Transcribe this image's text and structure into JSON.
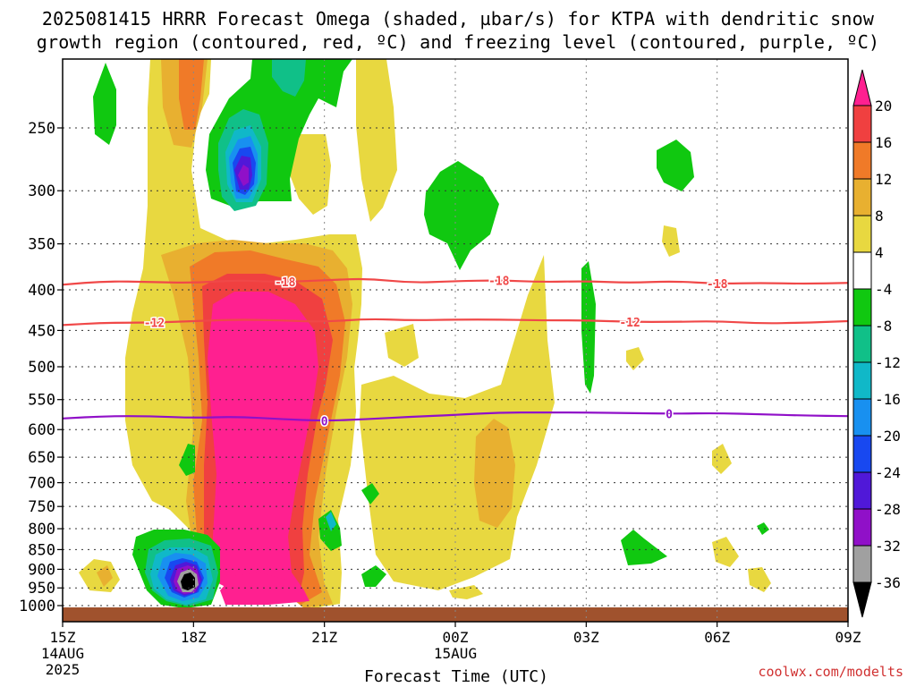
{
  "header": {
    "title_line1": "2025081415 HRRR Forecast Omega (shaded, µbar/s) for KTPA with dendritic snow",
    "title_line2": "growth region (contoured, red, ºC) and freezing level (contoured, purple, ºC)"
  },
  "footer": {
    "credit": "coolwx.com/modelts"
  },
  "chart_data": {
    "type": "contour",
    "xlabel": "Forecast Time (UTC)",
    "ylabel": "",
    "x_range_hours": [
      15,
      33
    ],
    "y_range_hpa": [
      1010,
      200
    ],
    "y_scale": "log-pressure",
    "grid": true,
    "x_ticks": [
      {
        "hour": 15,
        "label": "15Z",
        "sub1": "14AUG",
        "sub2": "2025"
      },
      {
        "hour": 18,
        "label": "18Z",
        "sub1": "",
        "sub2": ""
      },
      {
        "hour": 21,
        "label": "21Z",
        "sub1": "",
        "sub2": ""
      },
      {
        "hour": 24,
        "label": "00Z",
        "sub1": "15AUG",
        "sub2": ""
      },
      {
        "hour": 27,
        "label": "03Z",
        "sub1": "",
        "sub2": ""
      },
      {
        "hour": 30,
        "label": "06Z",
        "sub1": "",
        "sub2": ""
      },
      {
        "hour": 33,
        "label": "09Z",
        "sub1": "",
        "sub2": ""
      }
    ],
    "y_ticks": [
      250,
      300,
      350,
      400,
      450,
      500,
      550,
      600,
      650,
      700,
      750,
      800,
      850,
      900,
      950,
      1000
    ],
    "colorbar": {
      "labels": [
        "20",
        "16",
        "12",
        "8",
        "4",
        "-4",
        "-8",
        "-12",
        "-16",
        "-20",
        "-24",
        "-28",
        "-32",
        "-36"
      ],
      "colors": [
        "#ff2090",
        "#f04040",
        "#f07a28",
        "#e8b030",
        "#e8d840",
        "#ffffff",
        "#10c810",
        "#10c088",
        "#10b8c8",
        "#1890f0",
        "#1848f0",
        "#5018d8",
        "#9010c8",
        "#a0a0a0",
        "#000000"
      ]
    },
    "shade_colors": {
      "c4": "#e8d840",
      "c8": "#e8b030",
      "c12": "#f07a28",
      "c16": "#f04040",
      "c20": "#ff2090",
      "g8": "#10c810",
      "g12": "#10c088",
      "g16": "#10b8c8",
      "g20": "#1890f0",
      "g24": "#1848f0",
      "g28": "#5018d8",
      "g32": "#9010c8",
      "g36": "#a0a0a0",
      "black": "#000000",
      "ground": "#a0522d"
    },
    "contours": [
      {
        "name": "-18",
        "color": "#f04848",
        "labels": [
          {
            "text": "-18",
            "t": 20.1
          },
          {
            "text": "-18",
            "t": 25.0
          },
          {
            "text": "-18",
            "t": 30.0
          }
        ],
        "points": [
          [
            15,
            394
          ],
          [
            16,
            390
          ],
          [
            17,
            391
          ],
          [
            18,
            392
          ],
          [
            19,
            389
          ],
          [
            20,
            391
          ],
          [
            21,
            389
          ],
          [
            22,
            387
          ],
          [
            23,
            392
          ],
          [
            24,
            390
          ],
          [
            25,
            389
          ],
          [
            26,
            391
          ],
          [
            27,
            390
          ],
          [
            28,
            392
          ],
          [
            29,
            390
          ],
          [
            30,
            393
          ],
          [
            31,
            392
          ],
          [
            32,
            393
          ],
          [
            33,
            392
          ]
        ]
      },
      {
        "name": "-12",
        "color": "#f04848",
        "labels": [
          {
            "text": "-12",
            "t": 17.1
          },
          {
            "text": "-12",
            "t": 28.0
          }
        ],
        "points": [
          [
            15,
            443
          ],
          [
            16,
            440
          ],
          [
            17,
            440
          ],
          [
            18,
            438
          ],
          [
            19,
            436
          ],
          [
            20,
            437
          ],
          [
            21,
            439
          ],
          [
            22,
            435
          ],
          [
            23,
            437
          ],
          [
            24,
            436
          ],
          [
            25,
            436
          ],
          [
            26,
            437
          ],
          [
            27,
            437
          ],
          [
            28,
            439
          ],
          [
            29,
            439
          ],
          [
            30,
            438
          ],
          [
            31,
            441
          ],
          [
            32,
            440
          ],
          [
            33,
            438
          ]
        ]
      },
      {
        "name": "0",
        "color": "#9010c8",
        "labels": [
          {
            "text": "0",
            "t": 21.0
          },
          {
            "text": "0",
            "t": 28.9
          }
        ],
        "points": [
          [
            15,
            581
          ],
          [
            16,
            577
          ],
          [
            17,
            577
          ],
          [
            18,
            580
          ],
          [
            19,
            578
          ],
          [
            20,
            582
          ],
          [
            21,
            585
          ],
          [
            22,
            582
          ],
          [
            23,
            578
          ],
          [
            24,
            575
          ],
          [
            25,
            571
          ],
          [
            26,
            571
          ],
          [
            27,
            571
          ],
          [
            28,
            572
          ],
          [
            29,
            573
          ],
          [
            30,
            572
          ],
          [
            31,
            574
          ],
          [
            32,
            576
          ],
          [
            33,
            577
          ]
        ]
      }
    ]
  }
}
